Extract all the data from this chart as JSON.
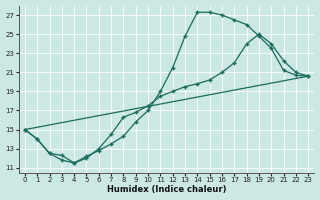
{
  "xlabel": "Humidex (Indice chaleur)",
  "bg_color": "#cce8e4",
  "grid_color": "#b8d8d4",
  "line_color": "#1a6b5a",
  "xlim": [
    -0.5,
    23.5
  ],
  "ylim": [
    10.5,
    28.0
  ],
  "xticks": [
    0,
    1,
    2,
    3,
    4,
    5,
    6,
    7,
    8,
    9,
    10,
    11,
    12,
    13,
    14,
    15,
    16,
    17,
    18,
    19,
    20,
    21,
    22,
    23
  ],
  "yticks": [
    11,
    13,
    15,
    17,
    19,
    21,
    23,
    25,
    27
  ],
  "curve1_x": [
    0,
    1,
    2,
    3,
    4,
    5,
    6,
    7,
    8,
    9,
    10,
    11,
    12,
    13,
    14,
    15,
    16,
    17,
    18,
    19,
    20,
    21,
    22,
    23
  ],
  "curve1_y": [
    15.0,
    14.0,
    12.5,
    11.8,
    11.5,
    12.2,
    12.8,
    13.5,
    14.3,
    15.8,
    17.0,
    19.0,
    21.5,
    24.8,
    27.3,
    27.3,
    27.0,
    26.5,
    26.0,
    24.8,
    23.5,
    21.2,
    20.7,
    20.6
  ],
  "curve2_x": [
    0,
    1,
    2,
    3,
    4,
    5,
    6,
    7,
    8,
    9,
    10,
    11,
    12,
    13,
    14,
    15,
    16,
    17,
    18,
    19,
    20,
    21,
    22,
    23
  ],
  "curve2_y": [
    15.0,
    14.0,
    12.5,
    12.3,
    11.5,
    12.0,
    13.0,
    14.5,
    16.3,
    16.8,
    17.5,
    18.5,
    19.0,
    19.5,
    19.8,
    20.2,
    21.0,
    22.0,
    24.0,
    25.0,
    24.0,
    22.2,
    21.0,
    20.6
  ],
  "line_x": [
    0,
    23
  ],
  "line_y": [
    15.0,
    20.6
  ]
}
